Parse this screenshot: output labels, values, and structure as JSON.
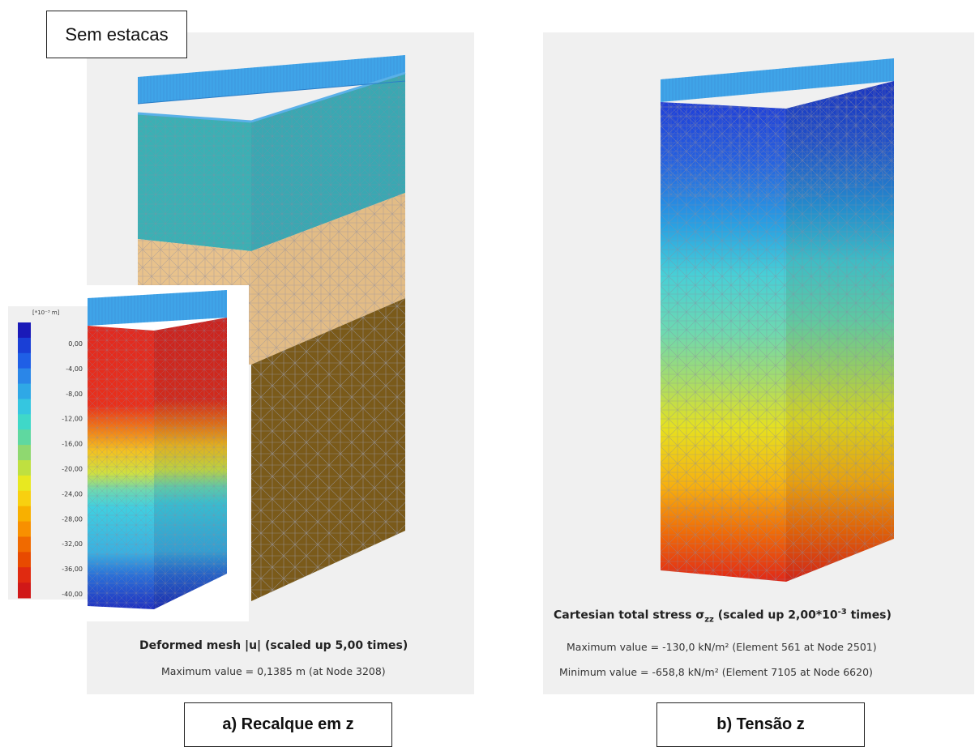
{
  "left": {
    "label": "Sem estacas",
    "caption_title": "Deformed mesh |u| (scaled up 5,00 times)",
    "caption_max": "Maximum value = 0,1385 m (at Node 3208)",
    "subfigure": "a) Recalque em z",
    "legend": {
      "unit": "[*10⁻³ m]",
      "ticks": [
        "0,00",
        "-4,00",
        "-8,00",
        "-12,00",
        "-16,00",
        "-20,00",
        "-24,00",
        "-28,00",
        "-32,00",
        "-36,00",
        "-40,00"
      ],
      "colors": [
        "#1a1ab8",
        "#1a3fd6",
        "#1f5fe6",
        "#2a86e8",
        "#2fa8e6",
        "#35c6e0",
        "#3fd8c8",
        "#5fd8a0",
        "#8fd870",
        "#bfe040",
        "#e8e820",
        "#f8d010",
        "#f8b000",
        "#f89000",
        "#f06a00",
        "#e84a00",
        "#e02a10",
        "#d01818"
      ]
    }
  },
  "right": {
    "caption_title": "Cartesian total stress σ",
    "caption_sub": "zz",
    "caption_title_rest": " (scaled up 2,00*10",
    "caption_sup": "-3",
    "caption_title_end": " times)",
    "caption_max": "Maximum value = -130,0 kN/m² (Element 561 at Node 2501)",
    "caption_min": "Minimum value = -658,8 kN/m² (Element 7105 at Node 6620)",
    "subfigure": "b) Tensão z"
  }
}
